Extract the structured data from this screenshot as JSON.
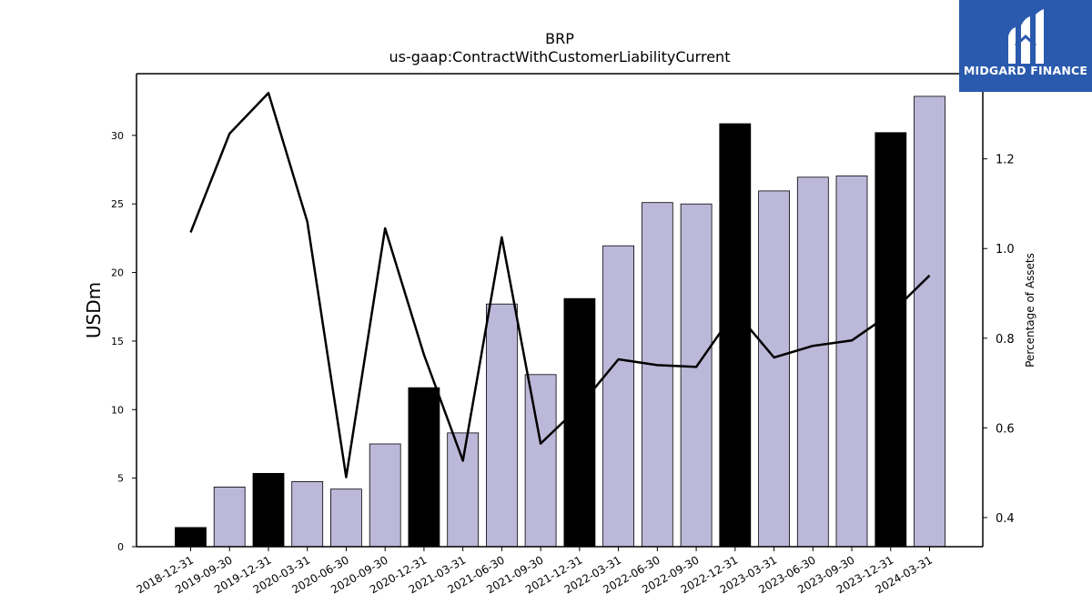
{
  "chart_data": {
    "type": "bar",
    "title": "BRP",
    "subtitle": "us-gaap:ContractWithCustomerLiabilityCurrent",
    "ylabel": "USDm",
    "y2label": "Percentage of Assets",
    "ylim": [
      0,
      34.5
    ],
    "y2lim": [
      0.335,
      1.39
    ],
    "yticks": [
      0,
      5,
      10,
      15,
      20,
      25,
      30
    ],
    "y2ticks": [
      0.4,
      0.6,
      0.8,
      1.0,
      1.2
    ],
    "categories": [
      "2018-12-31",
      "2019-09-30",
      "2019-12-31",
      "2020-03-31",
      "2020-06-30",
      "2020-09-30",
      "2020-12-31",
      "2021-03-31",
      "2021-06-30",
      "2021-09-30",
      "2021-12-31",
      "2022-03-31",
      "2022-06-30",
      "2022-09-30",
      "2022-12-31",
      "2023-03-31",
      "2023-06-30",
      "2023-09-30",
      "2023-12-31",
      "2024-03-31"
    ],
    "series": [
      {
        "type": "bar",
        "axis": "left",
        "values": [
          1.4,
          4.35,
          5.35,
          4.75,
          4.2,
          7.5,
          11.6,
          8.3,
          17.7,
          12.55,
          18.1,
          21.95,
          25.1,
          25.0,
          30.85,
          25.95,
          26.95,
          27.05,
          30.2,
          32.85
        ],
        "annual": [
          true,
          false,
          true,
          false,
          false,
          false,
          true,
          false,
          false,
          false,
          true,
          false,
          false,
          false,
          true,
          false,
          false,
          false,
          true,
          false
        ]
      },
      {
        "type": "line",
        "axis": "right",
        "values": [
          1.036,
          1.256,
          1.347,
          1.06,
          0.49,
          1.045,
          0.763,
          0.527,
          1.025,
          0.565,
          0.648,
          0.753,
          0.74,
          0.736,
          0.86,
          0.757,
          0.783,
          0.795,
          0.855,
          0.94
        ]
      }
    ],
    "colors": {
      "annual_bar": "#000000",
      "quarter_bar": "#bcb8d9",
      "line": "#000000"
    },
    "grid": false,
    "legend": "none"
  },
  "logo": {
    "text": "MIDGARD FINANCE",
    "icon": "midgard-m-icon",
    "background": "#2a5aad"
  }
}
